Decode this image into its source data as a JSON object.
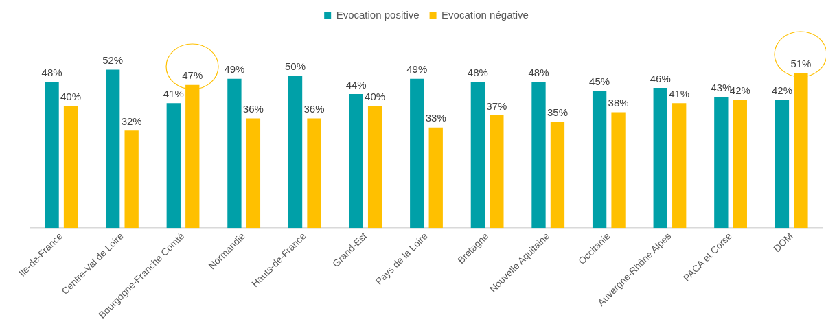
{
  "chart_data": {
    "type": "bar",
    "categories": [
      "Ile-de-France",
      "Centre-Val de Loire",
      "Bourgogne-Franche Comté",
      "Normandie",
      "Hauts-de-France",
      "Grand-Est",
      "Pays de la Loire",
      "Bretagne",
      "Nouvelle Aquitaine",
      "Occitanie",
      "Auvergne-Rhône Alpes",
      "PACA et Corse",
      "DOM"
    ],
    "series": [
      {
        "name": "Evocation positive",
        "color": "#00a0a8",
        "values": [
          48,
          52,
          41,
          49,
          50,
          44,
          49,
          48,
          48,
          45,
          46,
          43,
          42
        ],
        "value_labels": [
          "48%",
          "52%",
          "41%",
          "49%",
          "50%",
          "44%",
          "49%",
          "48%",
          "48%",
          "45%",
          "46%",
          "43%",
          "42%"
        ]
      },
      {
        "name": "Evocation négative",
        "color": "#ffc000",
        "values": [
          40,
          32,
          47,
          36,
          36,
          40,
          33,
          37,
          35,
          38,
          41,
          42,
          51
        ],
        "value_labels": [
          "40%",
          "32%",
          "47%",
          "36%",
          "36%",
          "40%",
          "33%",
          "37%",
          "35%",
          "38%",
          "41%",
          "42%",
          "51%"
        ]
      }
    ],
    "legend": "top",
    "grid": false
  }
}
